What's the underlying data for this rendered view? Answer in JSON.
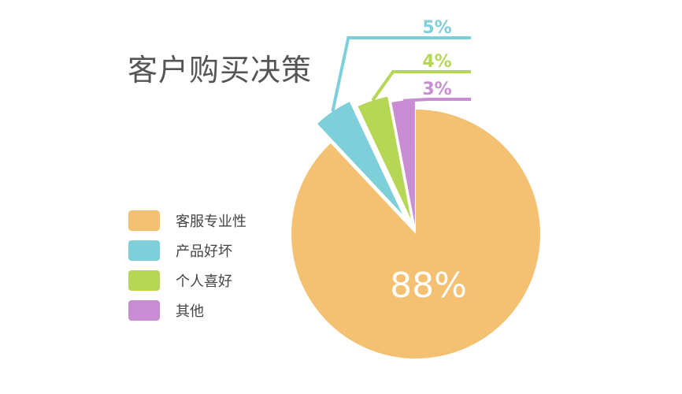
{
  "chart_data": {
    "type": "pie",
    "title": "客户购买决策",
    "categories": [
      "客服专业性",
      "产品好坏",
      "个人喜好",
      "其他"
    ],
    "values": [
      88,
      5,
      4,
      3
    ],
    "labels": [
      "88%",
      "5%",
      "4%",
      "3%"
    ],
    "colors": [
      "#F4C173",
      "#7DD0DA",
      "#B6D756",
      "#C88DD3"
    ],
    "legend_position": "left"
  }
}
